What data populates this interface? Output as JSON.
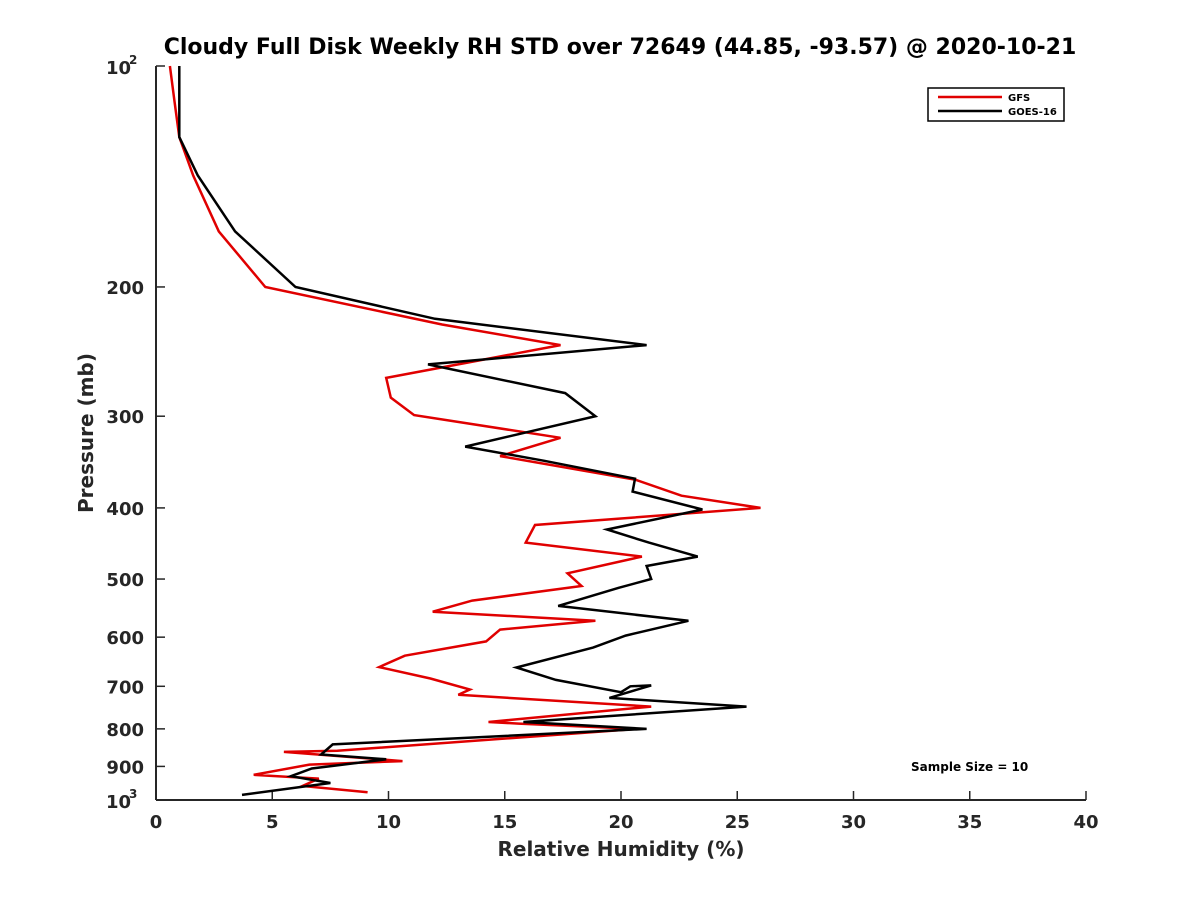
{
  "chart_data": {
    "type": "line",
    "title": "Cloudy Full Disk Weekly RH STD over 72649 (44.85, -93.57) @ 2020-10-21",
    "xlabel": "Relative Humidity (%)",
    "ylabel": "Pressure (mb)",
    "xlim": [
      0,
      40
    ],
    "ylim": [
      100,
      1000
    ],
    "yscale": "log",
    "y_reversed": true,
    "grid": false,
    "x_ticks": [
      "0",
      "5",
      "10",
      "15",
      "20",
      "25",
      "30",
      "35",
      "40"
    ],
    "y_ticks": [
      {
        "value": 100,
        "base": "10",
        "exp": "2"
      },
      {
        "value": 200,
        "label": "200"
      },
      {
        "value": 300,
        "label": "300"
      },
      {
        "value": 400,
        "label": "400"
      },
      {
        "value": 500,
        "label": "500"
      },
      {
        "value": 600,
        "label": "600"
      },
      {
        "value": 700,
        "label": "700"
      },
      {
        "value": 800,
        "label": "800"
      },
      {
        "value": 900,
        "label": "900"
      },
      {
        "value": 1000,
        "base": "10",
        "exp": "3"
      }
    ],
    "legend_position": "top-right",
    "annotation": "Sample Size = 10",
    "series": [
      {
        "name": "GFS",
        "color": "#e00000",
        "points": [
          [
            0.6,
            100
          ],
          [
            0.8,
            112
          ],
          [
            1.0,
            125
          ],
          [
            1.6,
            141
          ],
          [
            2.7,
            168
          ],
          [
            4.7,
            200
          ],
          [
            12.3,
            225
          ],
          [
            17.4,
            240
          ],
          [
            9.9,
            266
          ],
          [
            10.1,
            283
          ],
          [
            11.1,
            299
          ],
          [
            17.4,
            321
          ],
          [
            14.8,
            340
          ],
          [
            20.6,
            366
          ],
          [
            22.6,
            385
          ],
          [
            26.0,
            400
          ],
          [
            16.3,
            422
          ],
          [
            15.9,
            446
          ],
          [
            20.9,
            466
          ],
          [
            17.7,
            491
          ],
          [
            18.3,
            511
          ],
          [
            13.6,
            535
          ],
          [
            11.9,
            554
          ],
          [
            18.9,
            570
          ],
          [
            14.8,
            586
          ],
          [
            14.2,
            608
          ],
          [
            10.7,
            636
          ],
          [
            9.6,
            659
          ],
          [
            11.8,
            683
          ],
          [
            13.5,
            707
          ],
          [
            13.0,
            719
          ],
          [
            21.3,
            746
          ],
          [
            14.3,
            783
          ],
          [
            15.6,
            787
          ],
          [
            20.7,
            800
          ],
          [
            7.8,
            857
          ],
          [
            5.5,
            860
          ],
          [
            10.6,
            885
          ],
          [
            6.6,
            895
          ],
          [
            4.2,
            924
          ],
          [
            7.0,
            935
          ],
          [
            6.3,
            957
          ],
          [
            9.1,
            976
          ]
        ]
      },
      {
        "name": "GOES-16",
        "color": "#000000",
        "points": [
          [
            1.0,
            100
          ],
          [
            1.0,
            112
          ],
          [
            1.0,
            125
          ],
          [
            1.8,
            141
          ],
          [
            3.4,
            168
          ],
          [
            6.0,
            200
          ],
          [
            12.0,
            221
          ],
          [
            21.1,
            240
          ],
          [
            11.7,
            255
          ],
          [
            17.6,
            279
          ],
          [
            18.9,
            300
          ],
          [
            13.3,
            330
          ],
          [
            16.7,
            345
          ],
          [
            20.6,
            365
          ],
          [
            20.5,
            380
          ],
          [
            23.5,
            402
          ],
          [
            19.4,
            428
          ],
          [
            21.2,
            446
          ],
          [
            23.3,
            466
          ],
          [
            21.1,
            480
          ],
          [
            21.3,
            500
          ],
          [
            19.9,
            514
          ],
          [
            17.3,
            544
          ],
          [
            22.9,
            570
          ],
          [
            20.2,
            597
          ],
          [
            18.8,
            620
          ],
          [
            15.5,
            660
          ],
          [
            17.2,
            686
          ],
          [
            20.0,
            713
          ],
          [
            20.4,
            700
          ],
          [
            21.3,
            698
          ],
          [
            19.5,
            726
          ],
          [
            25.4,
            746
          ],
          [
            15.8,
            783
          ],
          [
            21.1,
            800
          ],
          [
            7.6,
            840
          ],
          [
            7.1,
            867
          ],
          [
            9.9,
            880
          ],
          [
            6.7,
            906
          ],
          [
            5.8,
            928
          ],
          [
            7.5,
            948
          ],
          [
            3.7,
            984
          ]
        ]
      }
    ]
  }
}
